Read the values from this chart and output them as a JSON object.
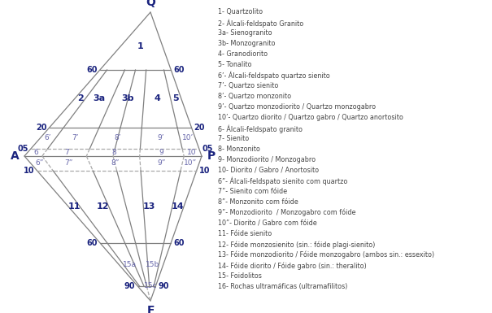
{
  "bg_color": "#ffffff",
  "dark_color": "#1a237e",
  "gray_color": "#808080",
  "light_gray": "#aaaaaa",
  "label_color": "#1a237e",
  "text_color": "#1a237e",
  "legend_color": "#444444",
  "legend_items": [
    "1- Quartzolito",
    "2- Álcali-feldspato Granito",
    "3a- Sienogranito",
    "3b- Monzogranito",
    "4- Granodiorito",
    "5- Tonalito",
    "6’- Álcali-feldspato quartzo sienito",
    "7’- Quartzo sienito",
    "8’- Quartzo monzonito",
    "9’- Quartzo monzodiorito / Quartzo monzogabro",
    "10’- Quartzo diorito / Quartzo gabro / Quartzo anortosito",
    "6- Álcali-feldspato granito",
    "7- Sienito",
    "8- Monzonito",
    "9- Monzodiorito / Monzogabro",
    "10- Diorito / Gabro / Anortosito",
    "6”- Álcali-feldspato sienito com quartzo",
    "7”- Sienito com fóide",
    "8”- Monzonito com fóide",
    "9”- Monzodiorito  / Monzogabro com fóide",
    "10”- Diorito / Gabro com fóide",
    "11- Fóide sienito",
    "12- Fóide monzosienito (sin.: fóide plagi-sienito)",
    "13- Fóide monzodiorito / Fóide monzogabro (ambos sin.: essexito)",
    "14- Fóide diorito / Fóide gabro (sin.: theralito)",
    "15- Foidolitos",
    "16- Rochas ultramáficas (ultramafilitos)"
  ]
}
